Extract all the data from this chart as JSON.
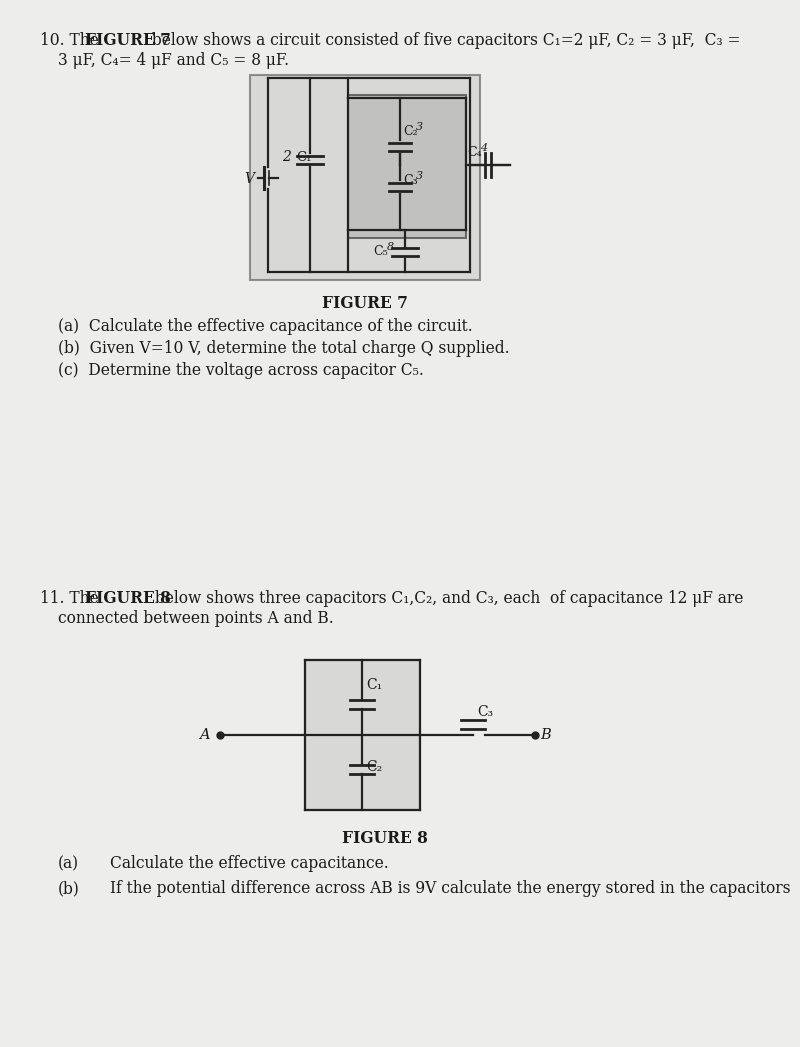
{
  "bg_color": "#ededeb",
  "text_color": "#1a1a1a",
  "fig_width": 7.51,
  "fig_height": 10.27,
  "fig7_label": "FIGURE 7",
  "fig8_label": "FIGURE 8",
  "q10a": "(a)  Calculate the effective capacitance of the circuit.",
  "q10b": "(b)  Given V=10 V, determine the total charge Q supplied.",
  "q10c": "(c)  Determine the voltage across capacitor C₅.",
  "q11a_label": "(a)",
  "q11a_text": "Calculate the effective capacitance.",
  "q11b_label": "(b)",
  "q11b_text": "If the potential difference across AB is 9V calculate the energy stored in the capacitors"
}
